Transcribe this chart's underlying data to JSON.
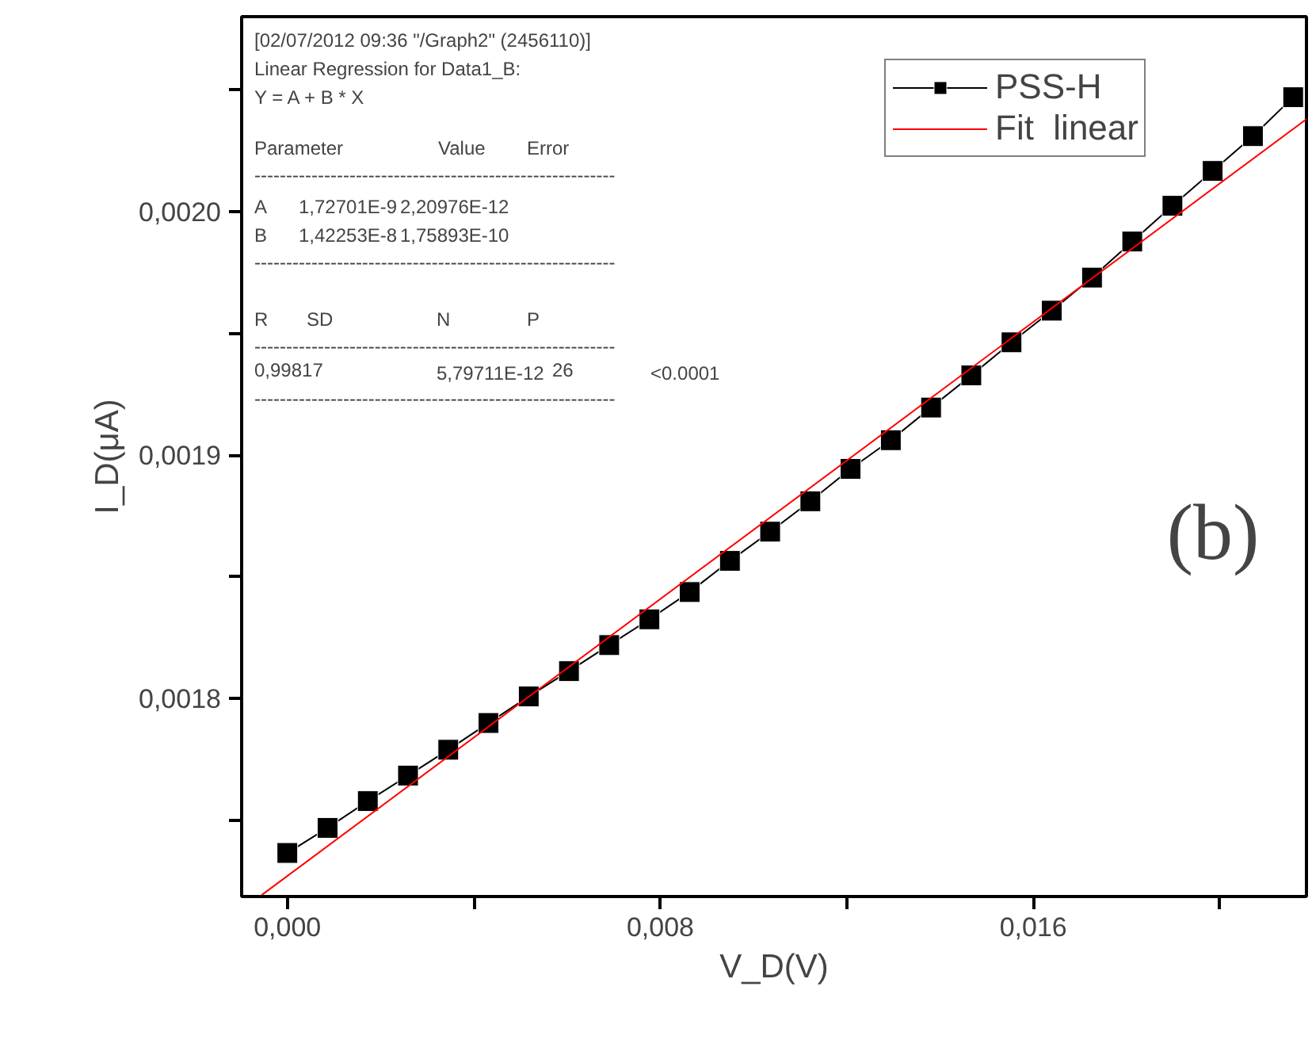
{
  "chart_data": {
    "type": "line",
    "xlabel": "V_D(V)",
    "ylabel": "I_D(μA)",
    "x": [
      0,
      0.000863,
      0.001726,
      0.002589,
      0.003452,
      0.004315,
      0.005178,
      0.006041,
      0.006904,
      0.007767,
      0.00863,
      0.009493,
      0.010356,
      0.011219,
      0.012082,
      0.012945,
      0.013808,
      0.014671,
      0.015534,
      0.016397,
      0.01726,
      0.018123,
      0.018986,
      0.019849,
      0.020712,
      0.021575
    ],
    "series": [
      {
        "name": "PSS-H",
        "color": "#000000",
        "marker": "square",
        "values": [
          0.0017365,
          0.0017468,
          0.0017578,
          0.0017683,
          0.0017789,
          0.0017899,
          0.0018008,
          0.0018112,
          0.0018219,
          0.0018325,
          0.0018437,
          0.0018565,
          0.0018685,
          0.001881,
          0.0018943,
          0.0019061,
          0.0019195,
          0.0019327,
          0.0019463,
          0.0019593,
          0.0019729,
          0.0019877,
          0.0020024,
          0.0020167,
          0.002031,
          0.002047
        ]
      },
      {
        "name": "Fit  linear",
        "color": "#ff0000",
        "marker": "none",
        "x": [
          -0.00055,
          0.02186
        ],
        "values": [
          0.0017192,
          0.002038
        ]
      }
    ],
    "xlim": [
      -0.00098,
      0.02186
    ],
    "ylim": [
      0.0017186,
      0.0020801
    ],
    "xticks": [
      {
        "value": 0,
        "label": "0,000"
      },
      {
        "value": 0.004,
        "label": null
      },
      {
        "value": 0.008,
        "label": "0,008"
      },
      {
        "value": 0.012,
        "label": null
      },
      {
        "value": 0.016,
        "label": "0,016"
      },
      {
        "value": 0.02,
        "label": null
      }
    ],
    "yticks": [
      {
        "value": 0.00175,
        "label": null
      },
      {
        "value": 0.0018,
        "label": "0,0018"
      },
      {
        "value": 0.00185,
        "label": null
      },
      {
        "value": 0.0019,
        "label": "0,0019"
      },
      {
        "value": 0.00195,
        "label": null
      },
      {
        "value": 0.002,
        "label": "0,0020"
      },
      {
        "value": 0.00205,
        "label": null
      }
    ],
    "grid": false,
    "legend": "top right",
    "annotations": [
      "[02/07/2012 09:36 \"/Graph2\" (2456110)]",
      "Linear Regression for Data1_B:",
      "Y = A + B * X",
      "Parameter\tValue\tError",
      "---------------------------------------------------------",
      "A\t1,72701E-9\t2,20976E-12",
      "B\t1,42253E-8\t1,75893E-10",
      "---------------------------------------------------------",
      "R\tSD\tN\tP",
      "---------------------------------------------------------",
      "0,99817\t5,79711E-12\t26\t<0.0001",
      "---------------------------------------------------------",
      "(b)"
    ]
  }
}
